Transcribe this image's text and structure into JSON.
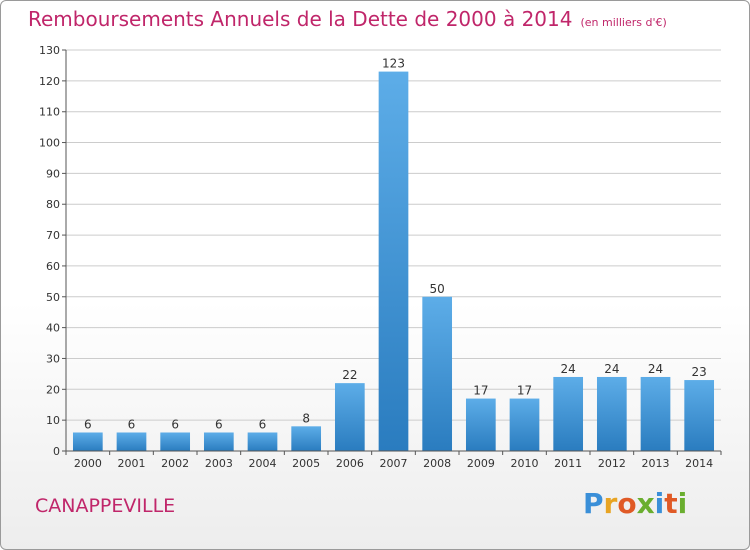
{
  "header": {
    "title": "Remboursements Annuels de la Dette de 2000 à 2014",
    "unit": "(en milliers d'€)"
  },
  "footer": {
    "place": "CANAPPEVILLE",
    "brand": "Proxiti"
  },
  "colors": {
    "bar_light": "#5dade8",
    "bar_dark": "#2a7cbf",
    "title": "#c0266a",
    "grid": "#cccccc"
  },
  "chart_data": {
    "type": "bar",
    "title": "Remboursements Annuels de la Dette de 2000 à 2014",
    "subtitle": "(en milliers d'€)",
    "xlabel": "",
    "ylabel": "",
    "categories": [
      "2000",
      "2001",
      "2002",
      "2003",
      "2004",
      "2005",
      "2006",
      "2007",
      "2008",
      "2009",
      "2010",
      "2011",
      "2012",
      "2013",
      "2014"
    ],
    "values": [
      6,
      6,
      6,
      6,
      6,
      8,
      22,
      123,
      50,
      17,
      17,
      24,
      24,
      24,
      23
    ],
    "ylim": [
      0,
      130
    ],
    "yticks": [
      0,
      10,
      20,
      30,
      40,
      50,
      60,
      70,
      80,
      90,
      100,
      110,
      120,
      130
    ],
    "grid": true,
    "data_labels": true
  }
}
